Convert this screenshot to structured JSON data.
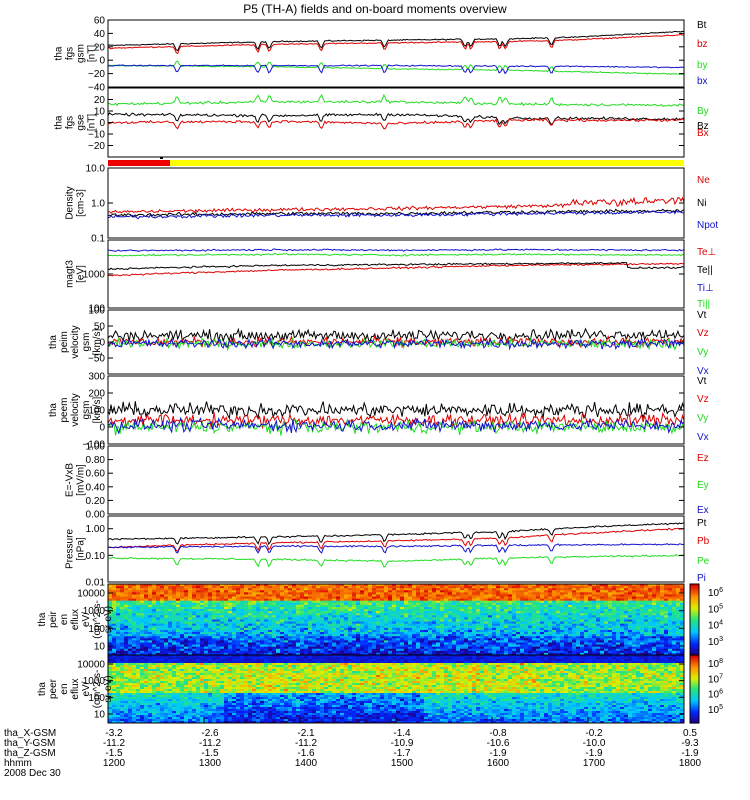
{
  "title": "P5 (TH-A) fields and on-board moments overview",
  "colors": {
    "black": "#000000",
    "red": "#dd0000",
    "green": "#22dd22",
    "blue": "#1111cc"
  },
  "time": {
    "start": "1200",
    "end": "1800",
    "date": "2008 Dec 30"
  },
  "ephemeris": {
    "labels": [
      "tha_X-GSM",
      "tha_Y-GSM",
      "tha_Z-GSM",
      "hhmm"
    ],
    "rows": [
      [
        "-3.2",
        "-2.6",
        "-2.1",
        "-1.4",
        "-0.8",
        "-0.2",
        "0.5"
      ],
      [
        "-11.2",
        "-11.2",
        "-11.2",
        "-10.9",
        "-10.6",
        "-10.0",
        "-9.3"
      ],
      [
        "-1.5",
        "-1.5",
        "-1.6",
        "-1.7",
        "-1.9",
        "-1.9",
        "-1.9"
      ],
      [
        "1200",
        "1300",
        "1400",
        "1500",
        "1600",
        "1700",
        "1800"
      ]
    ],
    "date": "2008 Dec 30"
  },
  "colorbar": {
    "ion": [
      "10^6",
      "10^5",
      "10^4",
      "10^3"
    ],
    "electron": [
      "10^8",
      "10^7",
      "10^6",
      "10^5"
    ]
  },
  "chart_data": [
    {
      "type": "line",
      "ylabel": [
        "tha",
        "fgs",
        "gsm",
        "[nT]"
      ],
      "scale": "linear",
      "ylim": [
        -40,
        60
      ],
      "ticks": [
        "60",
        "40",
        "20",
        "0",
        "−20",
        "−40"
      ],
      "series": [
        {
          "name": "Bt",
          "color": "black",
          "x": [
            0,
            0.3,
            0.5,
            0.7,
            0.8,
            1
          ],
          "y": [
            22,
            28,
            30,
            32,
            34,
            43
          ]
        },
        {
          "name": "bz",
          "color": "red",
          "x": [
            0,
            0.3,
            0.5,
            0.7,
            0.8,
            1
          ],
          "y": [
            18,
            24,
            26,
            28,
            30,
            38
          ]
        },
        {
          "name": "by",
          "color": "green",
          "x": [
            0,
            0.3,
            0.5,
            0.7,
            0.8,
            1
          ],
          "y": [
            -8,
            -10,
            -13,
            -15,
            -17,
            -21
          ]
        },
        {
          "name": "bx",
          "color": "blue",
          "x": [
            0,
            0.3,
            0.5,
            0.7,
            0.8,
            1
          ],
          "y": [
            -8,
            -8,
            -8,
            -9,
            -9,
            -11
          ]
        }
      ]
    },
    {
      "type": "line",
      "ylabel": [
        "tha",
        "fgs",
        "gse",
        "[nT]"
      ],
      "scale": "linear",
      "ylim": [
        -30,
        30
      ],
      "ticks": [
        "20",
        "10",
        "0",
        "−10",
        "−20"
      ],
      "series": [
        {
          "name": "By",
          "color": "green",
          "x": [
            0,
            0.3,
            0.5,
            0.7,
            1
          ],
          "y": [
            16,
            18,
            18,
            16,
            15
          ]
        },
        {
          "name": "Bz",
          "color": "black",
          "x": [
            0,
            0.3,
            0.5,
            0.7,
            1
          ],
          "y": [
            7,
            6,
            7,
            4,
            3
          ]
        },
        {
          "name": "Bx",
          "color": "red",
          "x": [
            0,
            0.3,
            0.5,
            0.7,
            1
          ],
          "y": [
            0,
            1,
            -1,
            2,
            2
          ]
        }
      ]
    },
    {
      "type": "line",
      "ylabel": [
        "Density",
        "[cm-3]"
      ],
      "scale": "log",
      "ylim": [
        0.1,
        10
      ],
      "ticks": [
        "10.0",
        "1.0",
        "0.1"
      ],
      "series": [
        {
          "name": "Ne",
          "color": "red",
          "x": [
            0,
            0.3,
            0.5,
            0.7,
            1
          ],
          "y": [
            0.55,
            0.65,
            0.7,
            0.8,
            1.0
          ]
        },
        {
          "name": "Ni",
          "color": "black",
          "x": [
            0,
            0.3,
            0.5,
            0.7,
            1
          ],
          "y": [
            0.45,
            0.5,
            0.5,
            0.55,
            0.6
          ]
        },
        {
          "name": "Npot",
          "color": "blue",
          "x": [
            0,
            0.3,
            0.5,
            0.7,
            1
          ],
          "y": [
            0.4,
            0.45,
            0.45,
            0.5,
            0.55
          ]
        }
      ]
    },
    {
      "type": "line",
      "ylabel": [
        "magt3",
        "[eV]"
      ],
      "scale": "log",
      "ylim": [
        100,
        10000
      ],
      "ticks": [
        "1000",
        "100"
      ],
      "series": [
        {
          "name": "Te⊥",
          "color": "red",
          "x": [
            0,
            0.3,
            0.5,
            0.7,
            1
          ],
          "y": [
            900,
            1300,
            1500,
            1800,
            2000
          ]
        },
        {
          "name": "Te||",
          "color": "black",
          "x": [
            0,
            0.3,
            0.5,
            0.7,
            1
          ],
          "y": [
            1400,
            1800,
            1900,
            2000,
            2200
          ]
        },
        {
          "name": "Ti⊥",
          "color": "blue",
          "x": [
            0,
            0.3,
            0.5,
            0.7,
            1
          ],
          "y": [
            4800,
            5200,
            5000,
            5200,
            5000
          ]
        },
        {
          "name": "Ti||",
          "color": "green",
          "x": [
            0,
            0.3,
            0.5,
            0.7,
            1
          ],
          "y": [
            3500,
            3800,
            3600,
            3800,
            3600
          ]
        }
      ]
    },
    {
      "type": "line",
      "ylabel": [
        "tha",
        "peim",
        "velocity",
        "gsm",
        "[km/s]"
      ],
      "scale": "linear",
      "ylim": [
        -100,
        100
      ],
      "ticks": [
        "100",
        "50",
        "0",
        "−50"
      ],
      "series": [
        {
          "name": "Vt",
          "color": "black",
          "x": [
            0,
            0.5,
            1
          ],
          "y": [
            20,
            20,
            25
          ]
        },
        {
          "name": "Vz",
          "color": "red",
          "x": [
            0,
            0.5,
            1
          ],
          "y": [
            0,
            0,
            0
          ]
        },
        {
          "name": "Vy",
          "color": "green",
          "x": [
            0,
            0.5,
            1
          ],
          "y": [
            -5,
            -5,
            -5
          ]
        },
        {
          "name": "Vx",
          "color": "blue",
          "x": [
            0,
            0.5,
            1
          ],
          "y": [
            -5,
            -5,
            -5
          ]
        }
      ]
    },
    {
      "type": "line",
      "ylabel": [
        "tha",
        "peem",
        "velocity",
        "gsm",
        "[km/s]"
      ],
      "scale": "linear",
      "ylim": [
        -100,
        300
      ],
      "ticks": [
        "300",
        "200",
        "100",
        "0",
        "−100"
      ],
      "series": [
        {
          "name": "Vt",
          "color": "black",
          "x": [
            0,
            0.5,
            1
          ],
          "y": [
            100,
            100,
            100
          ]
        },
        {
          "name": "Vz",
          "color": "red",
          "x": [
            0,
            0.5,
            1
          ],
          "y": [
            40,
            40,
            40
          ]
        },
        {
          "name": "Vy",
          "color": "green",
          "x": [
            0,
            0.5,
            1
          ],
          "y": [
            0,
            0,
            0
          ]
        },
        {
          "name": "Vx",
          "color": "blue",
          "x": [
            0,
            0.5,
            1
          ],
          "y": [
            10,
            10,
            10
          ]
        }
      ]
    },
    {
      "type": "line",
      "ylabel": [
        "E=-VxB",
        "[mV/m]"
      ],
      "scale": "linear",
      "ylim": [
        0,
        1
      ],
      "ticks": [
        "1.00",
        "0.80",
        "0.60",
        "0.40",
        "0.20",
        "0.00"
      ],
      "series": [
        {
          "name": "Ez",
          "color": "red",
          "x": [],
          "y": []
        },
        {
          "name": "Ey",
          "color": "green",
          "x": [],
          "y": []
        },
        {
          "name": "Ex",
          "color": "blue",
          "x": [],
          "y": []
        }
      ]
    },
    {
      "type": "line",
      "ylabel": [
        "Pressure",
        "[nPa]"
      ],
      "scale": "log",
      "ylim": [
        0.01,
        3
      ],
      "ticks": [
        "1.00",
        "0.10",
        "0.01"
      ],
      "series": [
        {
          "name": "Pt",
          "color": "black",
          "x": [
            0,
            0.3,
            0.5,
            0.7,
            1
          ],
          "y": [
            0.4,
            0.5,
            0.6,
            0.8,
            1.6
          ]
        },
        {
          "name": "Pb",
          "color": "red",
          "x": [
            0,
            0.3,
            0.5,
            0.7,
            1
          ],
          "y": [
            0.2,
            0.3,
            0.35,
            0.45,
            1.0
          ]
        },
        {
          "name": "Pe",
          "color": "green",
          "x": [
            0,
            0.3,
            0.5,
            0.7,
            1
          ],
          "y": [
            0.08,
            0.07,
            0.06,
            0.08,
            0.1
          ]
        },
        {
          "name": "Pi",
          "color": "blue",
          "x": [
            0,
            0.3,
            0.5,
            0.7,
            1
          ],
          "y": [
            0.2,
            0.22,
            0.22,
            0.24,
            0.26
          ]
        }
      ]
    },
    {
      "type": "heatmap",
      "ylabel": [
        "tha",
        "peir",
        "en",
        "eflux",
        "eV/",
        "(cm^2-s-",
        "sr-eV)"
      ],
      "scale": "log",
      "ylim": [
        5,
        20000
      ],
      "ticks": [
        "10000",
        "1000",
        "100",
        "10"
      ]
    },
    {
      "type": "heatmap",
      "ylabel": [
        "tha",
        "peer",
        "en",
        "eflux",
        "eV/",
        "(cm^2-s-",
        "sr-eV)"
      ],
      "scale": "log",
      "ylim": [
        8,
        20000
      ],
      "ticks": [
        "10000",
        "1000",
        "100",
        "10"
      ]
    }
  ]
}
